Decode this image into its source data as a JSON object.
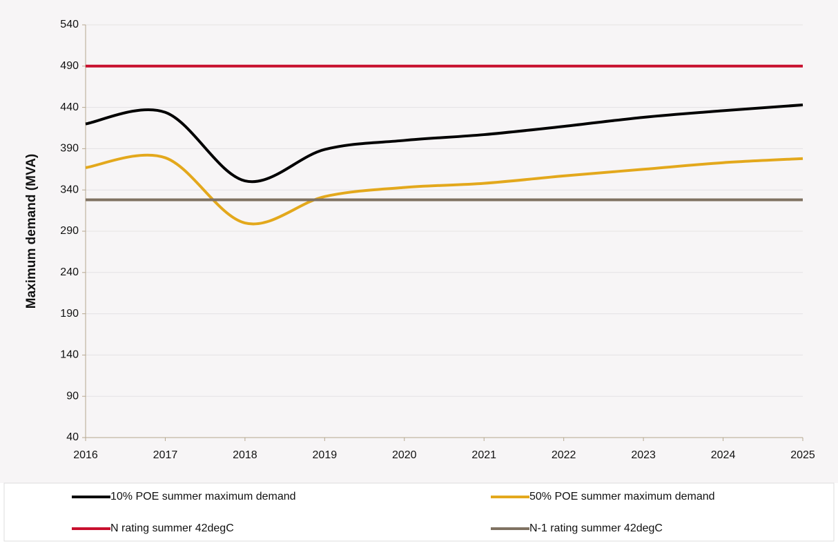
{
  "chart_data": {
    "type": "line",
    "y_label": "Maximum demand (MVA)",
    "x": [
      2016,
      2017,
      2018,
      2019,
      2020,
      2021,
      2022,
      2023,
      2024,
      2025
    ],
    "xlim": [
      2016,
      2025
    ],
    "xticks": [
      2016,
      2017,
      2018,
      2019,
      2020,
      2021,
      2022,
      2023,
      2024,
      2025
    ],
    "ylim": [
      40,
      540
    ],
    "yticks": [
      40,
      90,
      140,
      190,
      240,
      290,
      340,
      390,
      440,
      490,
      540
    ],
    "grid": true,
    "smooth": true,
    "legend": "bottom",
    "series": [
      {
        "name": "10% POE summer maximum demand",
        "color": "#000000",
        "values": [
          420,
          434,
          351,
          389,
          400,
          407,
          417,
          428,
          436,
          443
        ]
      },
      {
        "name": "50% POE summer maximum demand",
        "color": "#e3a81c",
        "values": [
          367,
          379,
          300,
          332,
          343,
          348,
          357,
          365,
          373,
          378
        ]
      },
      {
        "name": "N rating  summer 42degC",
        "color": "#c8102e",
        "values": [
          490,
          490,
          490,
          490,
          490,
          490,
          490,
          490,
          490,
          490
        ]
      },
      {
        "name": "N-1 rating summer 42degC",
        "color": "#7f7262",
        "values": [
          328,
          328,
          328,
          328,
          328,
          328,
          328,
          328,
          328,
          328
        ]
      }
    ]
  }
}
